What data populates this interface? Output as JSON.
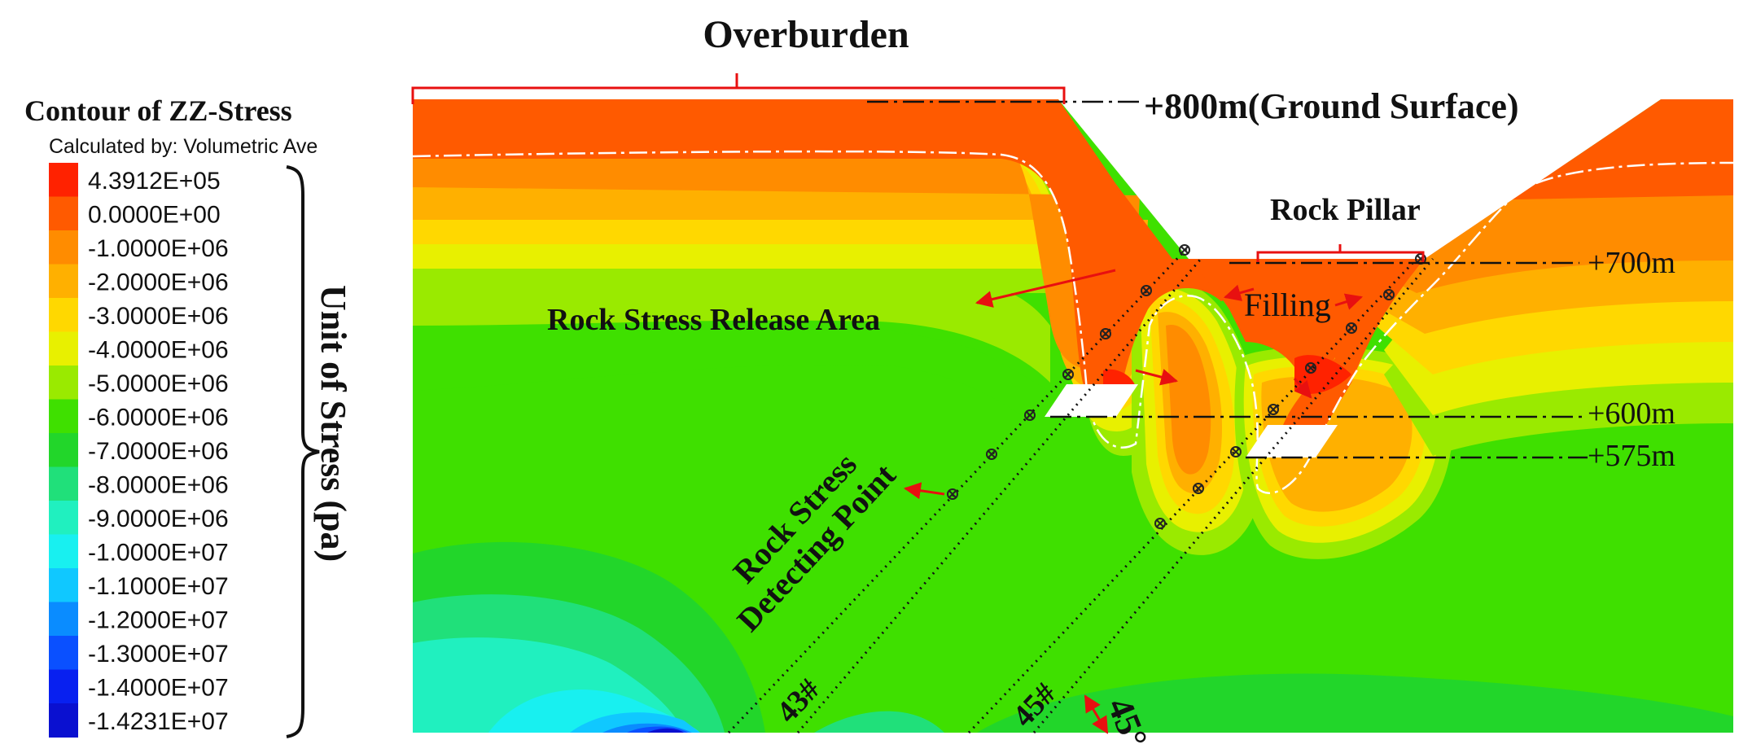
{
  "title": "Overburden",
  "legend": {
    "title": "Contour of ZZ-Stress",
    "subtitle": "Calculated by: Volumetric Ave",
    "unit_label": "Unit of  Stress  (pa)",
    "levels": [
      {
        "label": "4.3912E+05",
        "color": "#ff2200"
      },
      {
        "label": "0.0000E+00",
        "color": "#ff5a00"
      },
      {
        "label": "-1.0000E+06",
        "color": "#ff8c00"
      },
      {
        "label": "-2.0000E+06",
        "color": "#ffb000"
      },
      {
        "label": "-3.0000E+06",
        "color": "#ffd800"
      },
      {
        "label": "-4.0000E+06",
        "color": "#e8f000"
      },
      {
        "label": "-5.0000E+06",
        "color": "#9aea00"
      },
      {
        "label": "-6.0000E+06",
        "color": "#3fe000"
      },
      {
        "label": "-7.0000E+06",
        "color": "#22d62a"
      },
      {
        "label": "-8.0000E+06",
        "color": "#20e07a"
      },
      {
        "label": "-9.0000E+06",
        "color": "#20f0bf"
      },
      {
        "label": "-1.0000E+07",
        "color": "#18f0f0"
      },
      {
        "label": "-1.1000E+07",
        "color": "#10c8ff"
      },
      {
        "label": "-1.2000E+07",
        "color": "#0a8cff"
      },
      {
        "label": "-1.3000E+07",
        "color": "#0a50ff"
      },
      {
        "label": "-1.4000E+07",
        "color": "#0820f0"
      },
      {
        "label": "-1.4231E+07",
        "color": "#0a10d0"
      }
    ]
  },
  "elevations": {
    "ground": "+800m(Ground Surface)",
    "e700": "+700m",
    "e600": "+600m",
    "e575": "+575m"
  },
  "annotations": {
    "rock_pillar": "Rock Pillar",
    "filling": "Filling",
    "release_area": "Rock Stress Release Area",
    "detecting_line1": "Rock Stress",
    "detecting_line2": "Detecting Point",
    "borehole_43": "43#",
    "borehole_45": "45#",
    "angle": "45°"
  }
}
